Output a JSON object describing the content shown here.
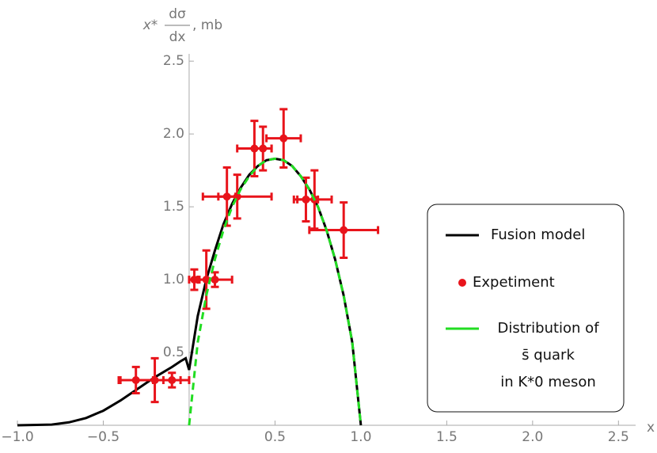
{
  "chart_data": {
    "type": "line",
    "ylabel": {
      "prefix": "x*",
      "numerator": "dσ",
      "denominator": "dx",
      "unit": ", mb"
    },
    "xlabel": "x",
    "xlim": [
      -1.0,
      2.6
    ],
    "ylim": [
      0,
      2.55
    ],
    "xticks": [
      {
        "value": -1,
        "label": "−1.0"
      },
      {
        "value": -0.5,
        "label": "−0.5"
      },
      0.5,
      {
        "value": 1,
        "label": "1.0"
      },
      1.5,
      {
        "value": 2,
        "label": "2.0"
      },
      2.5
    ],
    "yticks": [
      0.5,
      {
        "value": 1,
        "label": "1.0"
      },
      1.5,
      {
        "value": 2,
        "label": "2.0"
      },
      2.5
    ],
    "series": [
      {
        "name": "Fusion model",
        "color": "#000000",
        "mode": "line",
        "x": [
          -1.0,
          -0.8,
          -0.7,
          -0.6,
          -0.5,
          -0.4,
          -0.3,
          -0.2,
          -0.1,
          -0.05,
          -0.02,
          0,
          0.05,
          0.1,
          0.15,
          0.2,
          0.25,
          0.3,
          0.35,
          0.4,
          0.45,
          0.5,
          0.55,
          0.6,
          0.65,
          0.7,
          0.75,
          0.8,
          0.85,
          0.9,
          0.95,
          1.0
        ],
        "values": [
          0,
          0.005,
          0.02,
          0.05,
          0.1,
          0.17,
          0.25,
          0.33,
          0.4,
          0.44,
          0.46,
          0.38,
          0.75,
          1.0,
          1.2,
          1.38,
          1.52,
          1.63,
          1.72,
          1.78,
          1.82,
          1.83,
          1.82,
          1.78,
          1.71,
          1.62,
          1.5,
          1.34,
          1.14,
          0.89,
          0.57,
          0
        ]
      },
      {
        "name": "Expetiment",
        "color": "#e8141b",
        "mode": "points",
        "x": [
          -0.31,
          -0.2,
          -0.1,
          0.03,
          0.1,
          0.15,
          0.22,
          0.28,
          0.38,
          0.43,
          0.55,
          0.68,
          0.73,
          0.9
        ],
        "values": [
          0.31,
          0.31,
          0.31,
          1.0,
          1.0,
          1.0,
          1.57,
          1.57,
          1.9,
          1.9,
          1.97,
          1.55,
          1.55,
          1.34
        ],
        "xerr": [
          0.1,
          0.2,
          0.05,
          0.03,
          0.05,
          0.1,
          0.05,
          0.2,
          0.1,
          0.05,
          0.1,
          0.07,
          0.1,
          0.2
        ],
        "yerr": [
          0.09,
          0.15,
          0.05,
          0.07,
          0.2,
          0.05,
          0.2,
          0.15,
          0.19,
          0.15,
          0.2,
          0.15,
          0.2,
          0.19
        ]
      },
      {
        "name": "Distribution of\ns̄ quark\nin K*0 meson",
        "color": "#22dd22",
        "mode": "dashed",
        "x": [
          0,
          0.05,
          0.1,
          0.15,
          0.2,
          0.25,
          0.3,
          0.35,
          0.4,
          0.45,
          0.5,
          0.55,
          0.6,
          0.65,
          0.7,
          0.75,
          0.8,
          0.85,
          0.9,
          0.95,
          1.0
        ],
        "values": [
          0,
          0.57,
          0.89,
          1.14,
          1.34,
          1.5,
          1.62,
          1.71,
          1.78,
          1.82,
          1.83,
          1.82,
          1.78,
          1.71,
          1.62,
          1.5,
          1.34,
          1.14,
          0.89,
          0.57,
          0
        ]
      }
    ]
  }
}
